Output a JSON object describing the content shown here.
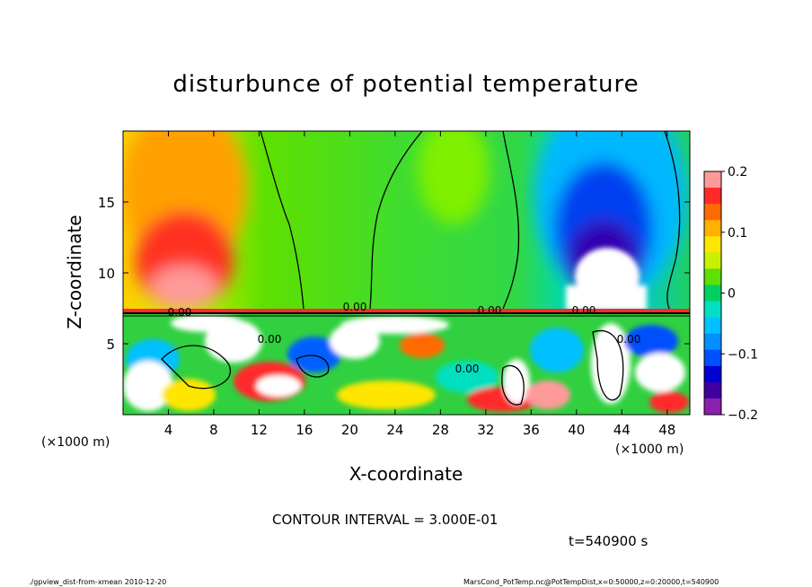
{
  "chart_data": {
    "type": "heatmap",
    "title": "disturbunce of potential temperature",
    "xlabel": "X-coordinate",
    "ylabel": "Z-coordinate",
    "x_unit_left": "(×1000 m)",
    "x_unit_right": "(×1000 m)",
    "xlim": [
      0,
      50
    ],
    "ylim": [
      0,
      20
    ],
    "x_ticks": [
      4,
      8,
      12,
      16,
      20,
      24,
      28,
      32,
      36,
      40,
      44,
      48
    ],
    "y_ticks": [
      5,
      10,
      15
    ],
    "colorbar": {
      "range": [
        -0.2,
        0.2
      ],
      "tick_values": [
        0.2,
        0.1,
        0,
        -0.1,
        -0.2
      ],
      "tick_labels": [
        "0.2",
        "0.1",
        "0",
        "−0.1",
        "−0.2"
      ],
      "colors": [
        "#ff9a9a",
        "#ff2a2a",
        "#ff6a00",
        "#ffb000",
        "#ffe600",
        "#c8f000",
        "#5ee000",
        "#00d060",
        "#00e0c0",
        "#00c0ff",
        "#0090ff",
        "#0050ff",
        "#0000d0",
        "#4000a0",
        "#8a20b0"
      ]
    },
    "contour_labels": [
      "0.00",
      "0.00",
      "0.00",
      "0.00",
      "0.00",
      "0.00",
      "0.00"
    ],
    "contour_interval_text": "CONTOUR INTERVAL = 3.000E-01",
    "time_text": "t=540900 s"
  },
  "footer": {
    "left": "./gpview_dist-from-xmean   2010-12-20",
    "right": "MarsCond_PotTemp.nc@PotTempDist,x=0:50000,z=0:20000,t=540900"
  }
}
